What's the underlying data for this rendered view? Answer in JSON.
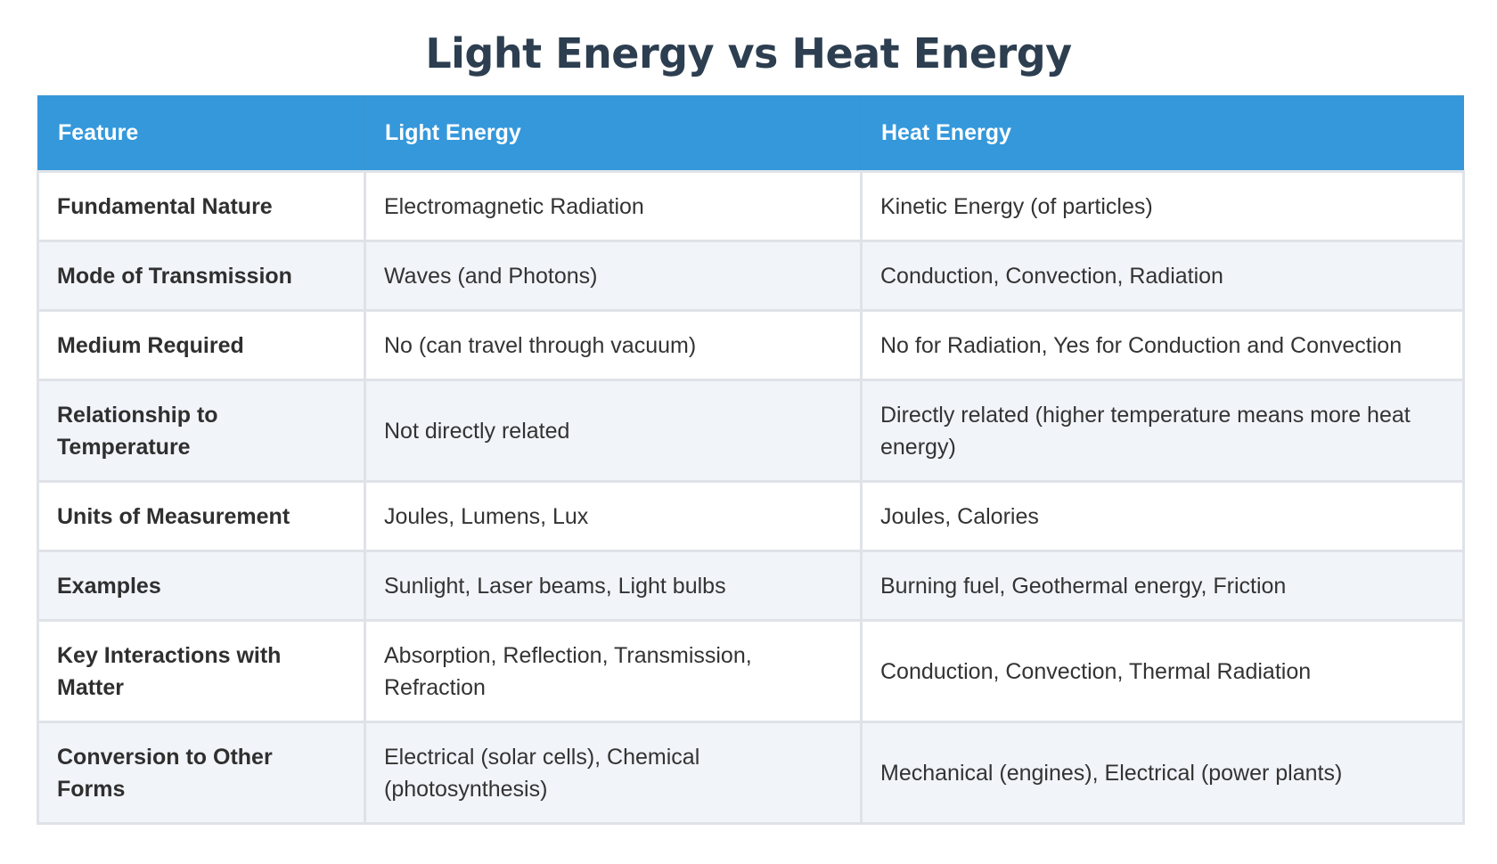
{
  "title": "Light Energy vs Heat Energy",
  "table": {
    "headers": [
      "Feature",
      "Light Energy",
      "Heat Energy"
    ],
    "rows": [
      {
        "feature": "Fundamental Nature",
        "light": "Electromagnetic Radiation",
        "heat": "Kinetic Energy (of particles)"
      },
      {
        "feature": "Mode of Transmission",
        "light": "Waves (and Photons)",
        "heat": "Conduction, Convection, Radiation"
      },
      {
        "feature": "Medium Required",
        "light": "No (can travel through vacuum)",
        "heat": "No for Radiation, Yes for Conduction and Convection"
      },
      {
        "feature": "Relationship to Temperature",
        "light": "Not directly related",
        "heat": "Directly related (higher temperature means more heat energy)"
      },
      {
        "feature": "Units of Measurement",
        "light": "Joules, Lumens, Lux",
        "heat": "Joules, Calories"
      },
      {
        "feature": "Examples",
        "light": "Sunlight, Laser beams, Light bulbs",
        "heat": "Burning fuel, Geothermal energy, Friction"
      },
      {
        "feature": "Key Interactions with Matter",
        "light": "Absorption, Reflection, Transmission, Refraction",
        "heat": "Conduction, Convection, Thermal Radiation"
      },
      {
        "feature": "Conversion to Other Forms",
        "light": "Electrical (solar cells), Chemical (photosynthesis)",
        "heat": "Mechanical (engines), Electrical (power plants)"
      }
    ]
  },
  "colors": {
    "title": "#2c3e50",
    "header_bg": "#3498db",
    "header_text": "#ffffff",
    "row_alt_bg": "#f1f4f9",
    "border": "#dfe3e8"
  }
}
